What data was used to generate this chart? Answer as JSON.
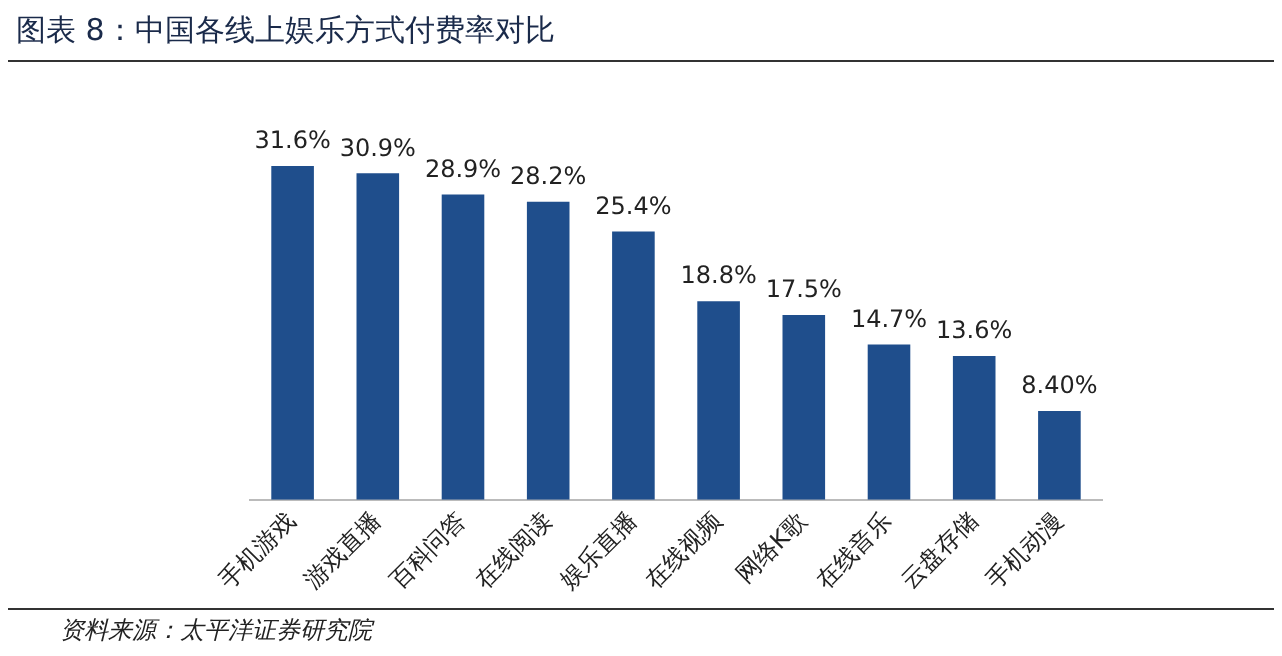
{
  "chart_data": {
    "type": "bar",
    "title": "图表 8：中国各线上娱乐方式付费率对比",
    "categories": [
      "手机游戏",
      "游戏直播",
      "百科问答",
      "在线阅读",
      "娱乐直播",
      "在线视频",
      "网络K歌",
      "在线音乐",
      "云盘存储",
      "手机动漫"
    ],
    "values": [
      31.6,
      30.9,
      28.9,
      28.2,
      25.4,
      18.8,
      17.5,
      14.7,
      13.6,
      8.4
    ],
    "value_labels": [
      "31.6%",
      "30.9%",
      "28.9%",
      "28.2%",
      "25.4%",
      "18.8%",
      "17.5%",
      "14.7%",
      "13.6%",
      "8.40%"
    ],
    "color": "#1f4e8c",
    "tick_labels": "x",
    "grid": false,
    "legend": false,
    "annotations": [
      "资料来源：太平洋证券研究院"
    ]
  }
}
